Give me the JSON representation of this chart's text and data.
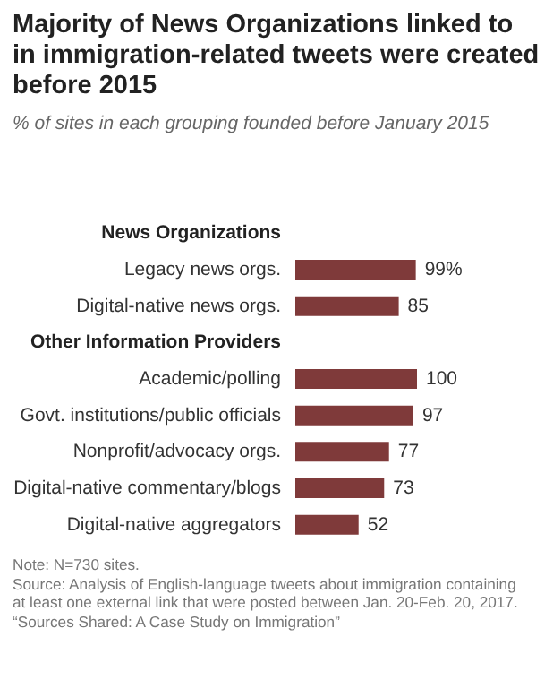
{
  "chart_data": {
    "type": "bar",
    "orientation": "horizontal",
    "title": "Majority of News Organizations linked to in immigration-related tweets were created before 2015",
    "subtitle": "% of sites in each grouping founded before January 2015",
    "categories": [
      "News Organizations",
      "Legacy news orgs.",
      "Digital-native news orgs.",
      "Other Information Providers",
      "Academic/polling",
      "Govt. institutions/public officials",
      "Nonprofit/advocacy orgs.",
      "Digital-native commentary/blogs",
      "Digital-native aggregators"
    ],
    "values": [
      null,
      99,
      85,
      null,
      100,
      97,
      77,
      73,
      52
    ],
    "value_labels": [
      null,
      "99%",
      "85",
      null,
      "100",
      "97",
      "77",
      "73",
      "52"
    ],
    "color": "#7f3a3a",
    "tick_labels": "y",
    "annotations": [
      "Note: N=730 sites.",
      "Source: Analysis of English-language tweets about immigration containing at least one external link that were posted between Jan. 20-Feb. 20, 2017.",
      "“Sources Shared: A Case Study on Immigration”"
    ]
  }
}
